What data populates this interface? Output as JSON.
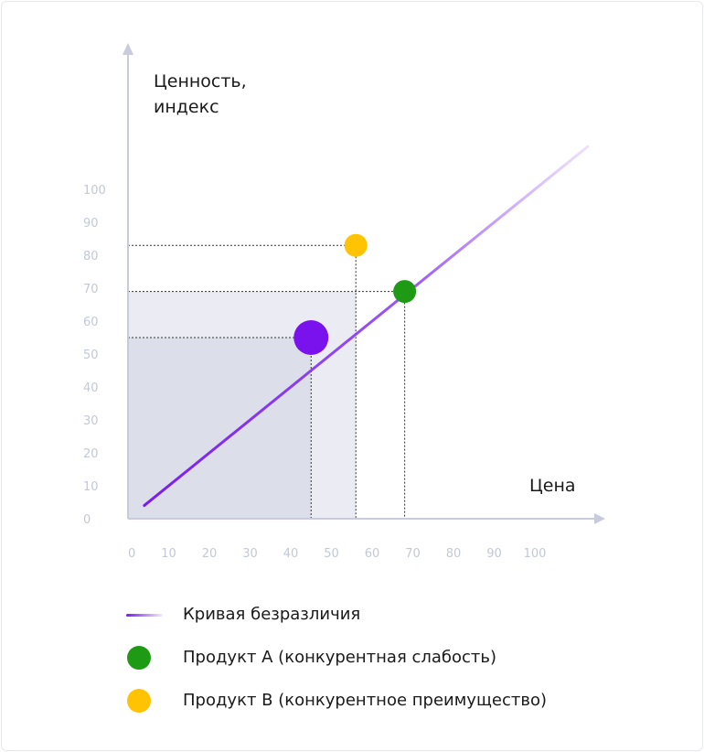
{
  "colors": {
    "indifference_curve": "#7a1cf0",
    "current_product": "#7a12ee",
    "product_a": "#1f9a15",
    "product_b": "#ffc303",
    "axis": "#c7cbdb",
    "ticks": "#c3c8d8",
    "region_outer": "#ebecf3",
    "region_inner": "#dcdee9"
  },
  "chart_data": {
    "type": "scatter",
    "title": "",
    "xlabel": "Цена",
    "ylabel_lines": [
      "Ценность,",
      "индекс"
    ],
    "xlim": [
      0,
      110
    ],
    "ylim": [
      0,
      110
    ],
    "x_ticks": [
      0,
      10,
      20,
      30,
      40,
      50,
      60,
      70,
      80,
      90,
      100
    ],
    "y_ticks": [
      0,
      10,
      20,
      30,
      40,
      50,
      60,
      70,
      80,
      90,
      100
    ],
    "grid": false,
    "legend_position": "bottom",
    "indifference_curve": {
      "name": "Кривая безразличия",
      "x": [
        4,
        113
      ],
      "y": [
        4,
        113
      ]
    },
    "points": [
      {
        "id": "current",
        "x": 45,
        "y": 55,
        "size": "large",
        "color": "#7a12ee"
      },
      {
        "id": "product_a",
        "x": 68,
        "y": 69,
        "size": "small",
        "color": "#1f9a15"
      },
      {
        "id": "product_b",
        "x": 56,
        "y": 83,
        "size": "small",
        "color": "#ffc303"
      }
    ],
    "shaded_regions": [
      {
        "x": [
          0,
          56
        ],
        "y": [
          0,
          69
        ],
        "color": "#ebecf3"
      },
      {
        "x": [
          0,
          45
        ],
        "y": [
          0,
          55
        ],
        "color": "#dcdee9"
      }
    ],
    "guide_lines": [
      {
        "from_point": "current"
      },
      {
        "from_point": "product_a"
      },
      {
        "from_point": "product_b"
      }
    ],
    "legend": [
      {
        "label": "Кривая безразличия",
        "marker": "line",
        "color": "#7a1cf0"
      },
      {
        "label": "Продукт А (конкурентная слабость)",
        "marker": "dot",
        "color": "#1f9a15"
      },
      {
        "label": "Продукт В (конкурентное преимущество)",
        "marker": "dot",
        "color": "#ffc303"
      }
    ]
  },
  "legend": {
    "curve_label": "Кривая безразличия",
    "product_a_label": "Продукт А (конкурентная слабость)",
    "product_b_label": "Продукт В (конкурентное преимущество)"
  }
}
